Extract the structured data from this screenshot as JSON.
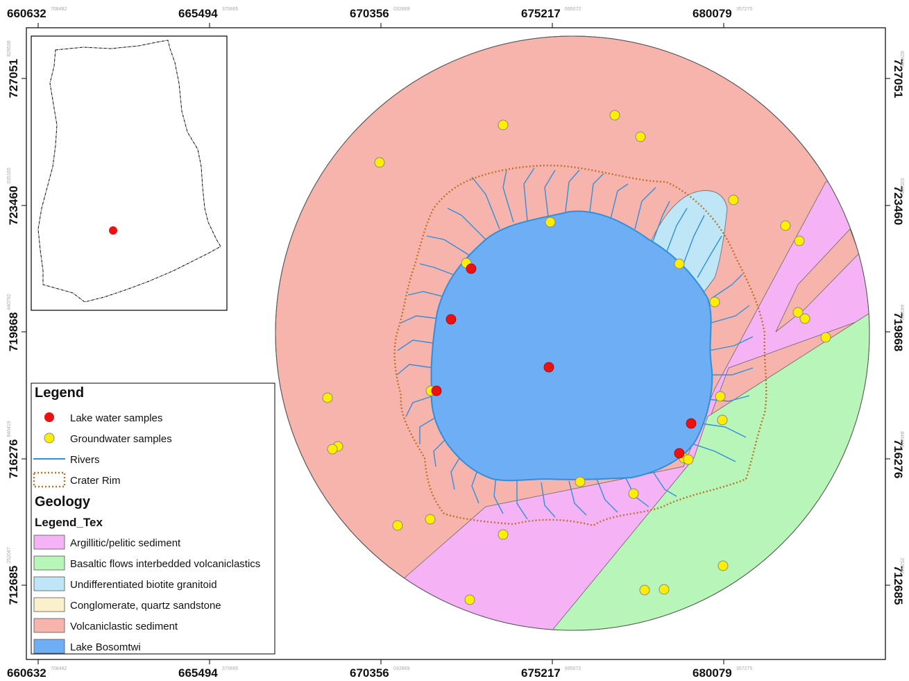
{
  "axes": {
    "x_ticks": [
      {
        "label": "660632",
        "sub": "708482"
      },
      {
        "label": "665494",
        "sub": "370665"
      },
      {
        "label": "670356",
        "sub": "032869"
      },
      {
        "label": "675217",
        "sub": "695072"
      },
      {
        "label": "680079",
        "sub": "357275"
      }
    ],
    "y_ticks": [
      {
        "label": "727051",
        "sub": "829538"
      },
      {
        "label": "723460",
        "sub": "035165"
      },
      {
        "label": "719868",
        "sub": "440792"
      },
      {
        "label": "716276",
        "sub": "846419"
      },
      {
        "label": "712685",
        "sub": "252047"
      }
    ]
  },
  "legend": {
    "title": "Legend",
    "items": [
      {
        "label": "Lake water samples",
        "symbol": "red-dot",
        "color": "#ee1111"
      },
      {
        "label": "Groundwater samples",
        "symbol": "yellow-dot",
        "color": "#ffee00"
      },
      {
        "label": "Rivers",
        "symbol": "line",
        "color": "#2f8fd8"
      },
      {
        "label": "Crater Rim",
        "symbol": "dotted-box",
        "color": "#c07020"
      }
    ],
    "geology_title": "Geology",
    "geology_subtitle": "Legend_Tex",
    "geology_items": [
      {
        "label": "Argillitic/pelitic sediment",
        "color": "#f5b3f5"
      },
      {
        "label": "Basaltic flows interbedded volcaniclastics",
        "color": "#b8f5b8"
      },
      {
        "label": "Undifferentiated biotite granitoid",
        "color": "#bfe6f7"
      },
      {
        "label": "Conglomerate, quartz sandstone",
        "color": "#fbf0cc"
      },
      {
        "label": "Volcaniclastic sediment",
        "color": "#f7b4ad"
      },
      {
        "label": "Lake Bosomtwi",
        "color": "#6eaef5"
      }
    ]
  },
  "colors": {
    "volcaniclastic": "#f7b4ad",
    "argillitic": "#f5b3f5",
    "basaltic": "#b8f5b8",
    "granitoid": "#bfe6f7",
    "lake": "#6eaef5",
    "river": "#2f8fd8",
    "rim": "#c07020",
    "lake_sample": "#ee1111",
    "groundwater_sample": "#ffee00"
  },
  "inset": {
    "marker_color": "#ee1111"
  }
}
